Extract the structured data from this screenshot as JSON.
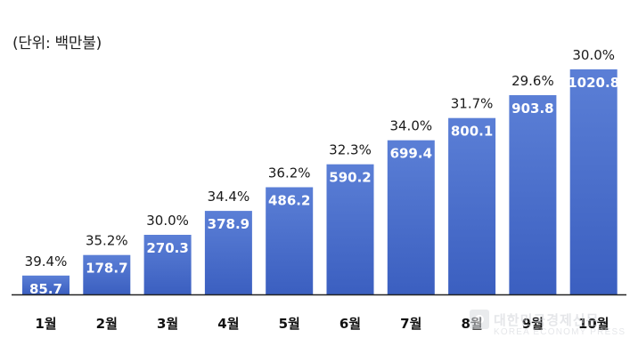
{
  "unit_label": "(단위: 백만불)",
  "chart_data": {
    "type": "bar",
    "categories": [
      "1월",
      "2월",
      "3월",
      "4월",
      "5월",
      "6월",
      "7월",
      "8월",
      "9월",
      "10월"
    ],
    "values": [
      85.7,
      178.7,
      270.3,
      378.9,
      486.2,
      590.2,
      699.4,
      800.1,
      903.8,
      1020.8
    ],
    "value_labels": [
      "85.7",
      "178.7",
      "270.3",
      "378.9",
      "486.2",
      "590.2",
      "699.4",
      "800.1",
      "903.8",
      "1020.8"
    ],
    "percent_labels": [
      "39.4%",
      "35.2%",
      "30.0%",
      "34.4%",
      "36.2%",
      "32.3%",
      "34.0%",
      "31.7%",
      "29.6%",
      "30.0%"
    ],
    "title": "",
    "xlabel": "",
    "ylabel": "",
    "ylim": [
      0,
      1020.8
    ],
    "grid": false,
    "legend": "none",
    "colors": {
      "bar_top": "#5b7fd6",
      "bar_bottom": "#3b5fc0",
      "axis": "#222222"
    }
  },
  "watermark": {
    "title": "대한민국경제신문",
    "subtitle": "KOREA ECONOMY PRESS"
  }
}
